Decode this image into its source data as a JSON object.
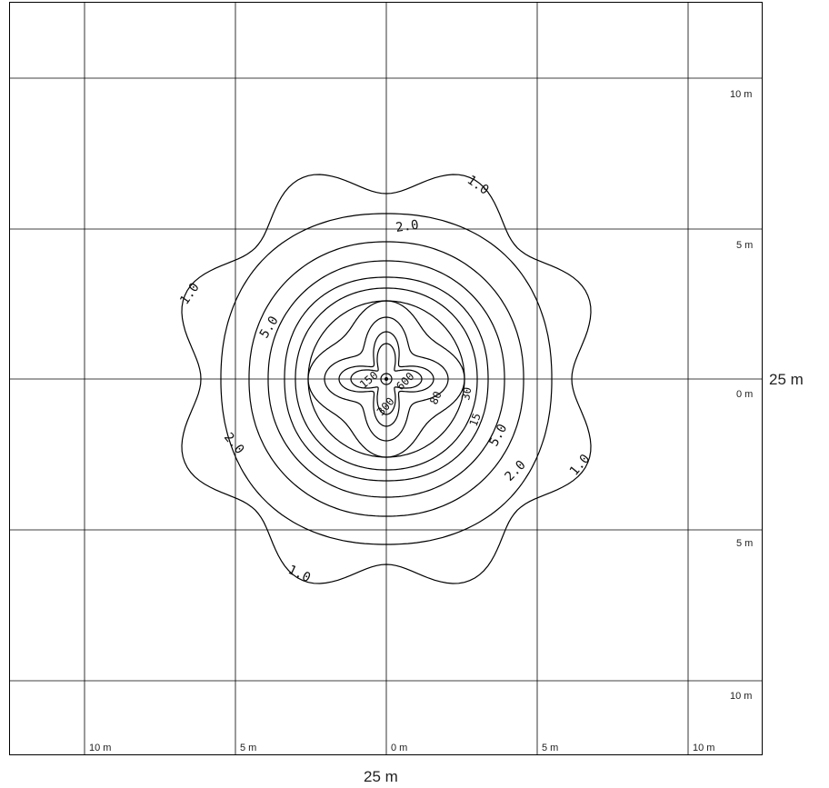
{
  "diagram": {
    "type": "isolux-contour-plot",
    "x_axis_labels": [
      "10 m",
      "5 m",
      "0 m",
      "5 m",
      "10 m"
    ],
    "y_axis_labels": [
      "10 m",
      "5 m",
      "0 m",
      "5 m",
      "10 m"
    ],
    "width_dimension": "25 m",
    "height_dimension": "25 m",
    "contour_levels": [
      "1.0",
      "2.0",
      "5.0",
      "15",
      "30",
      "80",
      "150",
      "300",
      "600"
    ],
    "contour_label_texts": {
      "l1a": "1.0",
      "l1b": "1.0",
      "l1c": "1.0",
      "l1d": "1.0",
      "l2a": "2.0",
      "l2b": "2.0",
      "l2c": "2.0",
      "l5a": "5.0",
      "l5b": "5.0",
      "l15": "15",
      "l30": "30",
      "l80": "80",
      "l150": "150",
      "l300": "300",
      "l600": "600"
    },
    "colors": {
      "lines": "#000000",
      "grid": "#000000",
      "background": "#ffffff"
    }
  }
}
